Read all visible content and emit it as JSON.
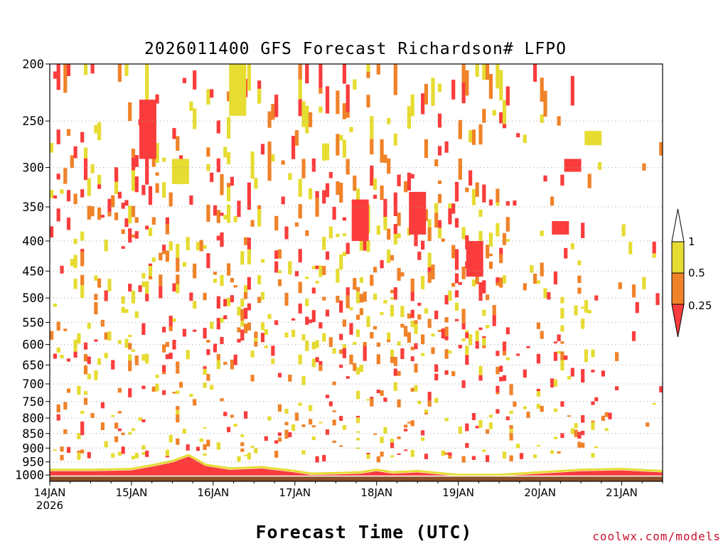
{
  "chart_data": {
    "type": "heatmap",
    "title": "2026011400 GFS Forecast Richardson# LFPO",
    "xlabel": "Forecast Time (UTC)",
    "x_ticks": [
      "14JAN",
      "15JAN",
      "16JAN",
      "17JAN",
      "18JAN",
      "19JAN",
      "20JAN",
      "21JAN"
    ],
    "x_first_tick_year": "2026",
    "x_range_days": [
      0,
      7.5
    ],
    "y_ticks": [
      200,
      250,
      300,
      350,
      400,
      450,
      500,
      550,
      600,
      650,
      700,
      750,
      800,
      850,
      900,
      950,
      1000
    ],
    "y_range_hpa": [
      200,
      1025
    ],
    "y_axis": "pressure (hPa), decreasing upward",
    "grid": "dotted horizontal lines at y ticks",
    "legend_placement": "right",
    "legend": [
      {
        "label": "1",
        "color": "#ffffff"
      },
      {
        "label": "0.5",
        "color": "#e6dc32"
      },
      {
        "label": "0.25",
        "color": "#f08228"
      },
      {
        "label": "",
        "color": "#fa3c3c"
      }
    ],
    "colors": {
      "ri_lt_025": "#fa3c3c",
      "ri_025_05": "#f08228",
      "ri_05_1": "#e6dc32",
      "ground": "#8c5028"
    },
    "layers": [
      {
        "name": "surface layer Ri<0.25",
        "x_days": [
          0,
          0.5,
          1,
          1.3,
          1.5,
          1.7,
          1.9,
          2.2,
          2.6,
          3,
          3.2,
          3.5,
          3.8,
          4,
          4.2,
          4.5,
          5,
          5.5,
          6,
          6.5,
          7,
          7.5
        ],
        "top_hpa": [
          985,
          985,
          982,
          965,
          952,
          930,
          965,
          980,
          975,
          990,
          1000,
          998,
          995,
          985,
          995,
          990,
          1005,
          1005,
          995,
          985,
          982,
          990
        ]
      },
      {
        "name": "upper patches",
        "cells": [
          {
            "day": 1.2,
            "p": [
              230,
              290
            ],
            "class": "ri_lt_025"
          },
          {
            "day": 1.6,
            "p": [
              290,
              320
            ],
            "class": "ri_05_1"
          },
          {
            "day": 2.3,
            "p": [
              200,
              245
            ],
            "class": "ri_05_1"
          },
          {
            "day": 3.8,
            "p": [
              340,
              400
            ],
            "class": "ri_lt_025"
          },
          {
            "day": 4.5,
            "p": [
              330,
              390
            ],
            "class": "ri_lt_025"
          },
          {
            "day": 5.2,
            "p": [
              400,
              460
            ],
            "class": "ri_lt_025"
          },
          {
            "day": 6.25,
            "p": [
              370,
              390
            ],
            "class": "ri_lt_025"
          },
          {
            "day": 6.4,
            "p": [
              290,
              305
            ],
            "class": "ri_lt_025"
          },
          {
            "day": 6.65,
            "p": [
              260,
              275
            ],
            "class": "ri_05_1"
          }
        ]
      }
    ]
  },
  "credit": "coolwx.com/models"
}
